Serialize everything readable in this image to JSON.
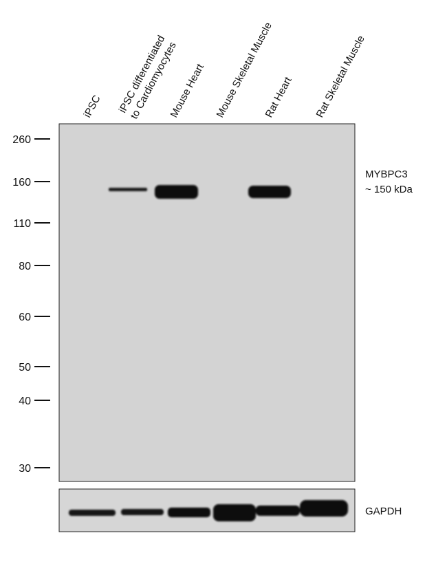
{
  "lanes": [
    [
      "iPSC"
    ],
    [
      "iPSC differentiated",
      "to Cardiomyocytes"
    ],
    [
      "Mouse Heart"
    ],
    [
      "Mouse Skeletal Muscle"
    ],
    [
      "Rat Heart"
    ],
    [
      "Rat Skeletal Muscle"
    ]
  ],
  "markers": [
    "260",
    "160",
    "110",
    "80",
    "60",
    "50",
    "40",
    "30"
  ],
  "target": {
    "name": "MYBPC3",
    "size": "~ 150 kDa"
  },
  "loading_control": "GAPDH"
}
